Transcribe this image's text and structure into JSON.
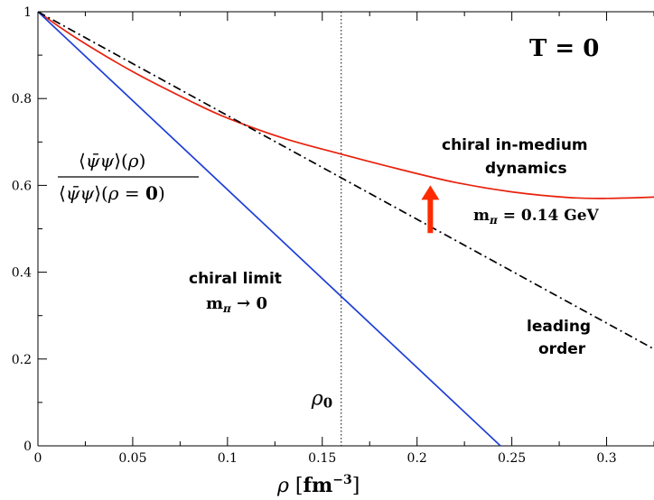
{
  "chart_data": {
    "type": "line",
    "title": "",
    "xlabel": "ρ  [fm⁻³]",
    "ylabel": "⟨ψ̄ψ⟩(ρ) / ⟨ψ̄ψ⟩(ρ = 0)",
    "xlim": [
      0,
      0.325
    ],
    "ylim": [
      0,
      1
    ],
    "x_ticks": [
      "0",
      "0.05",
      "0.1",
      "0.15",
      "0.2",
      "0.25",
      "0.3"
    ],
    "y_ticks": [
      "0",
      "0.2",
      "0.4",
      "0.6",
      "0.8",
      "1"
    ],
    "grid": false,
    "series": [
      {
        "name": "chiral in-medium dynamics",
        "sublabel": "mπ = 0.14 GeV",
        "color": "#e8210c",
        "style": "solid",
        "x": [
          0,
          0.02,
          0.05,
          0.08,
          0.1,
          0.13,
          0.16,
          0.19,
          0.22,
          0.25,
          0.28,
          0.3,
          0.325
        ],
        "y": [
          1.0,
          0.94,
          0.862,
          0.795,
          0.755,
          0.708,
          0.672,
          0.638,
          0.607,
          0.585,
          0.572,
          0.57,
          0.573
        ]
      },
      {
        "name": "chiral limit",
        "sublabel": "mπ → 0",
        "color": "#1f3fd6",
        "style": "solid",
        "x": [
          0,
          0.244
        ],
        "y": [
          1.0,
          0.0
        ]
      },
      {
        "name": "leading order",
        "sublabel": "",
        "color": "#000000",
        "style": "dashdot",
        "x": [
          0,
          0.325
        ],
        "y": [
          1.0,
          0.223
        ]
      }
    ],
    "reference_line": {
      "x": 0.16,
      "label": "ρ0",
      "style": "dotted"
    },
    "annotation_T": "T = 0",
    "arrow": {
      "x": 0.207,
      "y_from": 0.49,
      "y_to": 0.6,
      "color": "#ff2a00"
    }
  }
}
